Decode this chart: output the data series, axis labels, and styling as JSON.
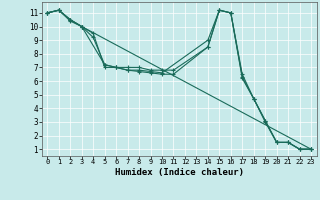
{
  "xlabel": "Humidex (Indice chaleur)",
  "background_color": "#c8eaea",
  "grid_color": "#ffffff",
  "line_color": "#1a6b5a",
  "xlim": [
    -0.5,
    23.5
  ],
  "ylim": [
    0.5,
    11.8
  ],
  "xticks": [
    0,
    1,
    2,
    3,
    4,
    5,
    6,
    7,
    8,
    9,
    10,
    11,
    12,
    13,
    14,
    15,
    16,
    17,
    18,
    19,
    20,
    21,
    22,
    23
  ],
  "yticks": [
    1,
    2,
    3,
    4,
    5,
    6,
    7,
    8,
    9,
    10,
    11
  ],
  "lines": [
    {
      "x": [
        0,
        1,
        2,
        3,
        4,
        5,
        6,
        7,
        8,
        9,
        10,
        11,
        14,
        15,
        16,
        17,
        18,
        19,
        20,
        21,
        22,
        23
      ],
      "y": [
        11,
        11.2,
        10.5,
        10,
        9.5,
        7,
        7,
        7,
        7,
        6.8,
        6.8,
        6.8,
        8.5,
        11.2,
        11,
        6.5,
        4.7,
        3.1,
        1.5,
        1.5,
        1,
        1
      ]
    },
    {
      "x": [
        0,
        1,
        2,
        3,
        4,
        5,
        6,
        7,
        8,
        9,
        10,
        14,
        15,
        16,
        17,
        18,
        19,
        20,
        21,
        22,
        23
      ],
      "y": [
        11,
        11.2,
        10.5,
        10,
        9.2,
        7.2,
        7,
        6.8,
        6.8,
        6.7,
        6.6,
        9.0,
        11.2,
        11,
        6.3,
        4.7,
        3.1,
        1.5,
        1.5,
        1,
        1
      ]
    },
    {
      "x": [
        0,
        1,
        2,
        3,
        5,
        6,
        7,
        8,
        9,
        10,
        11,
        14,
        15,
        16,
        17,
        18,
        19,
        20,
        21,
        22,
        23
      ],
      "y": [
        11,
        11.2,
        10.4,
        10,
        7.2,
        7,
        6.8,
        6.7,
        6.6,
        6.5,
        6.5,
        8.5,
        11.2,
        11,
        6.2,
        4.7,
        3,
        1.5,
        1.5,
        1,
        1
      ]
    },
    {
      "x": [
        0,
        1,
        2,
        3,
        23
      ],
      "y": [
        11,
        11.2,
        10.5,
        10,
        1
      ]
    }
  ]
}
